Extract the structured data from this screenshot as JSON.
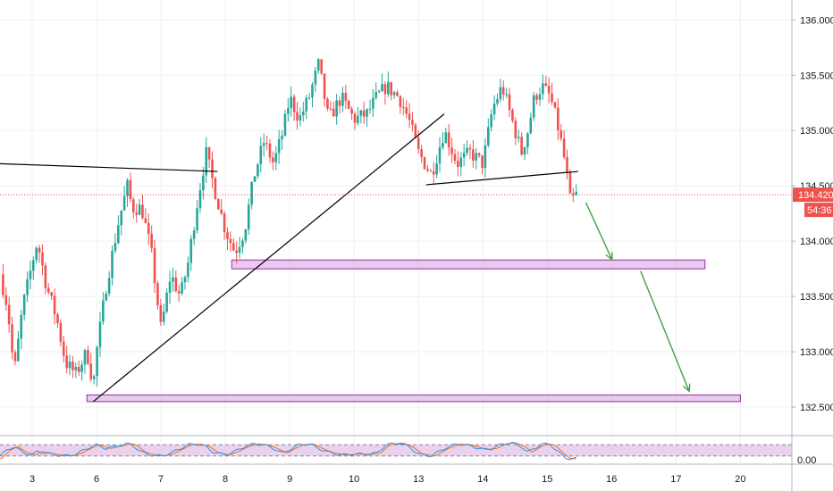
{
  "chart_data": {
    "type": "candlestick",
    "price_axis": {
      "ticks": [
        "136.000",
        "135.500",
        "135.000",
        "134.500",
        "134.000",
        "133.500",
        "133.000",
        "132.500"
      ],
      "tick_values": [
        136.0,
        135.5,
        135.0,
        134.5,
        134.0,
        133.5,
        133.0,
        132.5
      ],
      "ylim": [
        132.25,
        136.18
      ]
    },
    "time_axis": {
      "ticks": [
        "3",
        "6",
        "7",
        "8",
        "9",
        "10",
        "13",
        "14",
        "15",
        "16",
        "17",
        "20"
      ],
      "tick_positions": [
        1.0,
        2.0,
        3.0,
        4.0,
        5.0,
        6.0,
        7.0,
        8.0,
        9.0,
        10.0,
        11.0,
        12.0
      ],
      "xlim": [
        0.5,
        12.8
      ]
    },
    "last_price": {
      "value": 134.42,
      "label": "134.420",
      "countdown": "54:36",
      "color": "#ef5350"
    },
    "candle_colors": {
      "up": "#26a69a",
      "down": "#ef5350"
    },
    "series_anchors": [
      [
        0.5,
        133.7
      ],
      [
        0.62,
        133.4
      ],
      [
        0.72,
        132.8
      ],
      [
        0.85,
        133.4
      ],
      [
        1.0,
        133.8
      ],
      [
        1.08,
        134.0
      ],
      [
        1.22,
        133.6
      ],
      [
        1.38,
        133.3
      ],
      [
        1.52,
        132.9
      ],
      [
        1.68,
        132.8
      ],
      [
        1.85,
        133.0
      ],
      [
        1.95,
        132.7
      ],
      [
        2.0,
        133.0
      ],
      [
        2.15,
        133.6
      ],
      [
        2.35,
        134.2
      ],
      [
        2.48,
        134.5
      ],
      [
        2.55,
        134.3
      ],
      [
        2.7,
        134.3
      ],
      [
        2.85,
        133.9
      ],
      [
        3.0,
        133.2
      ],
      [
        3.15,
        133.7
      ],
      [
        3.3,
        133.5
      ],
      [
        3.42,
        133.8
      ],
      [
        3.55,
        134.3
      ],
      [
        3.7,
        134.8
      ],
      [
        3.82,
        134.5
      ],
      [
        4.0,
        134.1
      ],
      [
        4.15,
        133.9
      ],
      [
        4.3,
        134.1
      ],
      [
        4.45,
        134.6
      ],
      [
        4.6,
        134.9
      ],
      [
        4.75,
        134.7
      ],
      [
        4.9,
        135.0
      ],
      [
        5.0,
        135.3
      ],
      [
        5.15,
        135.1
      ],
      [
        5.3,
        135.3
      ],
      [
        5.45,
        135.6
      ],
      [
        5.6,
        135.1
      ],
      [
        5.8,
        135.3
      ],
      [
        6.0,
        135.1
      ],
      [
        6.2,
        135.15
      ],
      [
        6.35,
        135.3
      ],
      [
        6.5,
        135.4
      ],
      [
        6.7,
        135.3
      ],
      [
        6.85,
        135.1
      ],
      [
        7.0,
        134.8
      ],
      [
        7.2,
        134.6
      ],
      [
        7.4,
        135.0
      ],
      [
        7.6,
        134.7
      ],
      [
        7.8,
        134.8
      ],
      [
        8.0,
        134.7
      ],
      [
        8.15,
        135.2
      ],
      [
        8.3,
        135.4
      ],
      [
        8.45,
        135.1
      ],
      [
        8.6,
        134.8
      ],
      [
        8.7,
        135.0
      ],
      [
        8.8,
        135.3
      ],
      [
        8.92,
        135.4
      ],
      [
        9.05,
        135.3
      ],
      [
        9.18,
        135.0
      ],
      [
        9.28,
        134.7
      ],
      [
        9.36,
        134.35
      ],
      [
        9.45,
        134.42
      ]
    ],
    "oscillator": {
      "scale_label": "0.00",
      "anchors": [
        [
          0.5,
          20
        ],
        [
          0.62,
          55
        ],
        [
          0.72,
          70
        ],
        [
          0.85,
          40
        ],
        [
          1.0,
          25
        ],
        [
          1.08,
          45
        ],
        [
          1.22,
          35
        ],
        [
          1.38,
          25
        ],
        [
          1.52,
          20
        ],
        [
          1.68,
          30
        ],
        [
          1.85,
          60
        ],
        [
          1.95,
          75
        ],
        [
          2.0,
          80
        ],
        [
          2.15,
          60
        ],
        [
          2.35,
          75
        ],
        [
          2.48,
          85
        ],
        [
          2.55,
          80
        ],
        [
          2.7,
          40
        ],
        [
          2.85,
          25
        ],
        [
          3.0,
          20
        ],
        [
          3.15,
          35
        ],
        [
          3.3,
          60
        ],
        [
          3.42,
          80
        ],
        [
          3.55,
          85
        ],
        [
          3.7,
          70
        ],
        [
          3.82,
          40
        ],
        [
          4.0,
          25
        ],
        [
          4.15,
          45
        ],
        [
          4.3,
          70
        ],
        [
          4.45,
          85
        ],
        [
          4.6,
          80
        ],
        [
          4.75,
          60
        ],
        [
          4.9,
          35
        ],
        [
          5.0,
          55
        ],
        [
          5.15,
          80
        ],
        [
          5.3,
          85
        ],
        [
          5.45,
          60
        ],
        [
          5.6,
          40
        ],
        [
          5.8,
          25
        ],
        [
          6.0,
          30
        ],
        [
          6.2,
          30
        ],
        [
          6.35,
          35
        ],
        [
          6.5,
          80
        ],
        [
          6.7,
          90
        ],
        [
          6.85,
          70
        ],
        [
          7.0,
          30
        ],
        [
          7.2,
          20
        ],
        [
          7.4,
          60
        ],
        [
          7.6,
          85
        ],
        [
          7.8,
          75
        ],
        [
          8.0,
          55
        ],
        [
          8.15,
          60
        ],
        [
          8.3,
          85
        ],
        [
          8.45,
          90
        ],
        [
          8.6,
          70
        ],
        [
          8.7,
          40
        ],
        [
          8.8,
          60
        ],
        [
          8.92,
          85
        ],
        [
          9.05,
          80
        ],
        [
          9.18,
          40
        ],
        [
          9.28,
          10
        ],
        [
          9.36,
          5
        ],
        [
          9.45,
          8
        ]
      ],
      "band": [
        20,
        80
      ],
      "range": [
        0,
        100
      ]
    },
    "drawings": {
      "trendlines": [
        {
          "from": [
            0.5,
            134.7
          ],
          "to": [
            3.88,
            134.63
          ],
          "color": "#000000"
        },
        {
          "from": [
            1.95,
            132.55
          ],
          "to": [
            7.4,
            135.15
          ],
          "color": "#000000"
        },
        {
          "from": [
            7.12,
            134.51
          ],
          "to": [
            9.48,
            134.63
          ],
          "color": "#000000"
        }
      ],
      "zones": [
        {
          "from": [
            4.1,
            133.83
          ],
          "to": [
            11.45,
            133.75
          ],
          "color": "#e1bee7",
          "border": "#9c27b0"
        },
        {
          "from": [
            1.85,
            132.61
          ],
          "to": [
            12.0,
            132.55
          ],
          "color": "#e1bee7",
          "border": "#9c27b0"
        }
      ],
      "arrows": [
        {
          "from": [
            9.6,
            134.35
          ],
          "to": [
            10.0,
            133.84
          ],
          "color": "#43a047"
        },
        {
          "from": [
            10.45,
            133.73
          ],
          "to": [
            11.2,
            132.65
          ],
          "color": "#43a047"
        }
      ]
    }
  }
}
